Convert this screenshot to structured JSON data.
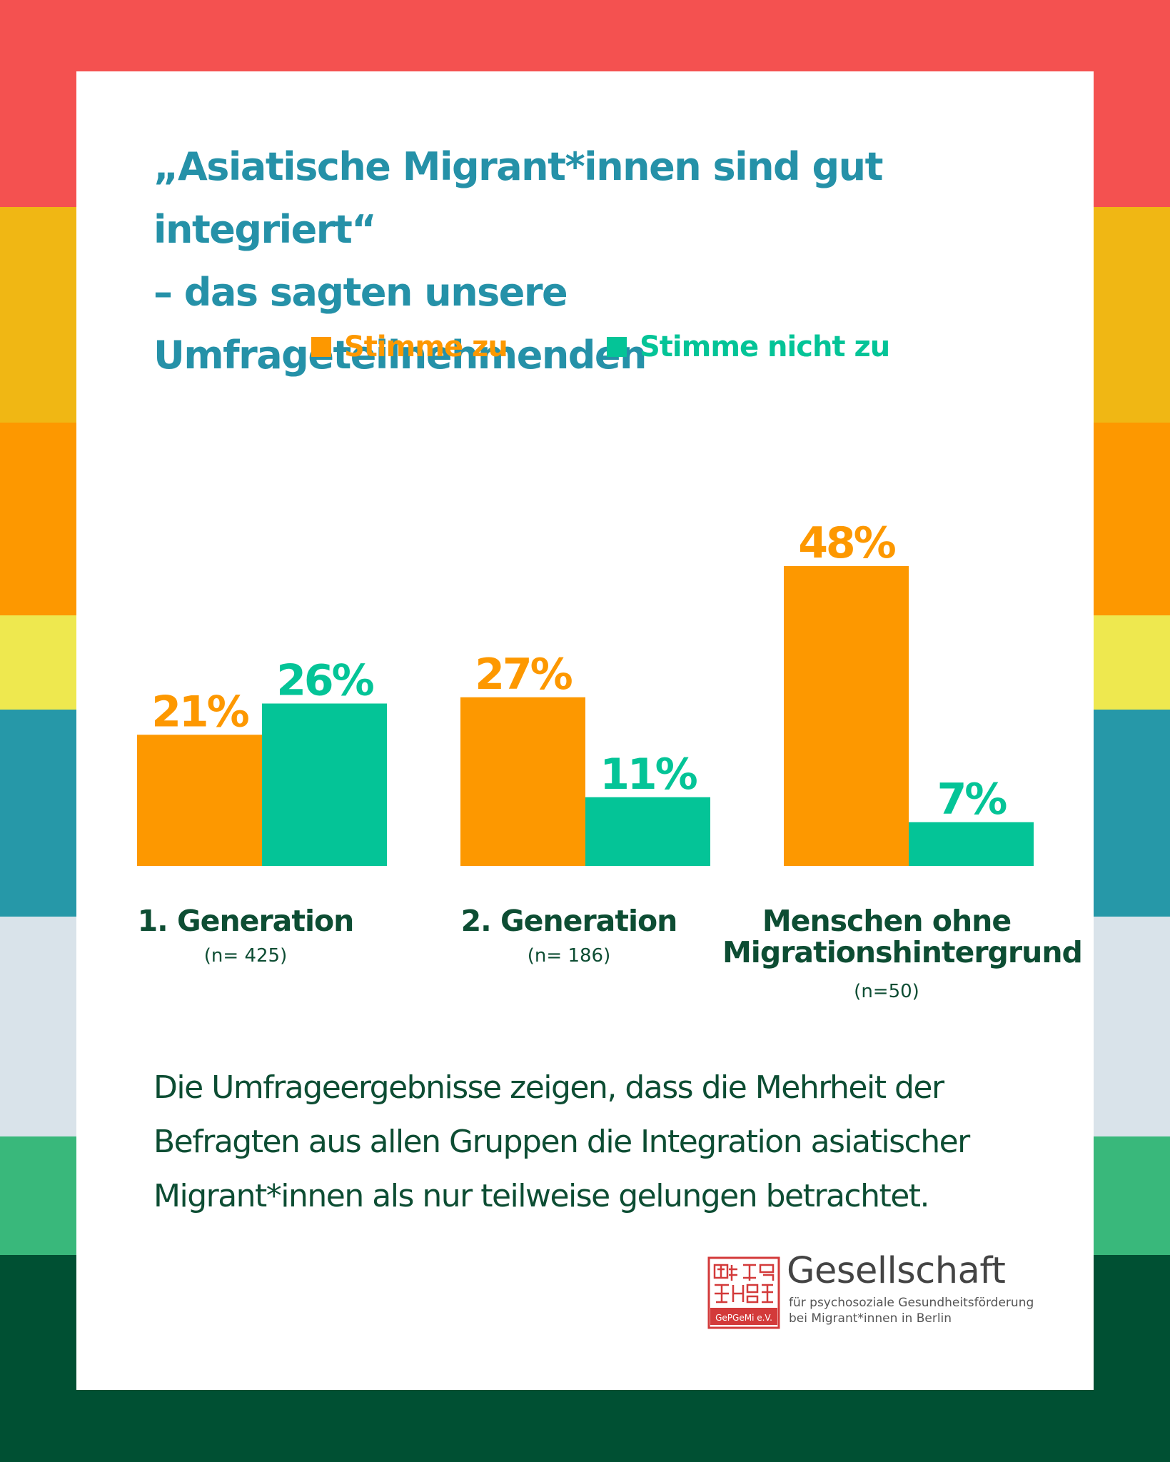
{
  "colors": {
    "stripes": [
      "#f45150",
      "#f0b714",
      "#fd9800",
      "#eee84f",
      "#2698a8",
      "#d9e3ea",
      "#39b87b",
      "#005033"
    ],
    "agree": "#fd9800",
    "disagree": "#04c497",
    "title": "#2591a8",
    "text": "#0d4d33",
    "seal": "#d33a3a"
  },
  "title": {
    "line1": "„Asiatische Migrant*innen sind gut integriert“",
    "line2": "– das sagten unsere Umfrageteilnehmenden"
  },
  "chart_data": {
    "type": "bar",
    "legend_position": "top",
    "grid": false,
    "unit": "%",
    "categories": [
      "1.  Generation",
      "2.  Generation",
      "Menschen ohne Migrationshintergrund"
    ],
    "sample_sizes": [
      "(n= 425)",
      "(n= 186)",
      "(n=50)"
    ],
    "series": [
      {
        "name": "Stimme zu",
        "values": [
          21,
          27,
          48
        ],
        "labels": [
          "21%",
          "27%",
          "48%"
        ],
        "color": "#fd9800"
      },
      {
        "name": "Stimme nicht zu",
        "values": [
          26,
          11,
          7
        ],
        "labels": [
          "26%",
          "11%",
          "7%"
        ],
        "color": "#04c497"
      }
    ],
    "ylim": [
      0,
      48
    ]
  },
  "groups": [
    {
      "line1": "1.  Generation",
      "line2": "",
      "n": "(n= 425)"
    },
    {
      "line1": "2.  Generation",
      "line2": "",
      "n": "(n= 186)"
    },
    {
      "line1": "Menschen ohne",
      "line2": "Migrationshintergrund",
      "n": "(n=50)"
    }
  ],
  "note": "Die Umfrageergebnisse zeigen, dass die Mehrheit der Befragten aus allen Gruppen die Integration asiatischer Migrant*innen als nur teilweise gelungen betrachtet.",
  "logo": {
    "name": "Gesellschaft",
    "sub1": "für psychosoziale Gesundheitsförderung",
    "sub2": "bei Migrant*innen in Berlin",
    "seal_text": "GePGeMi e.V."
  }
}
